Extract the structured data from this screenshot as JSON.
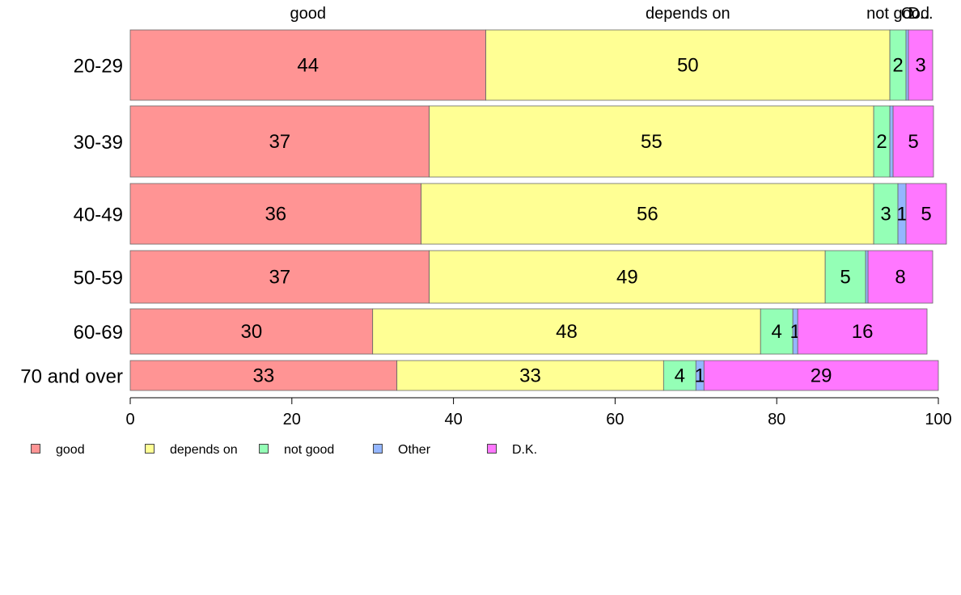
{
  "chart_data": {
    "type": "bar",
    "orientation": "horizontal",
    "stacked": true,
    "categories": [
      "20-29",
      "30-39",
      "40-49",
      "50-59",
      "60-69",
      "70 and over"
    ],
    "series": [
      {
        "name": "good",
        "color": "#FF9494",
        "values": [
          44,
          37,
          36,
          37,
          30,
          33
        ]
      },
      {
        "name": "depends on",
        "color": "#FFFF94",
        "values": [
          50,
          55,
          56,
          49,
          48,
          33
        ]
      },
      {
        "name": "not good",
        "color": "#94FFB6",
        "values": [
          2,
          2,
          3,
          5,
          4,
          4
        ]
      },
      {
        "name": "Other",
        "color": "#94B6FF",
        "values": [
          0.3,
          0.4,
          1,
          0.3,
          0.6,
          1
        ]
      },
      {
        "name": "D.K.",
        "color": "#FF77FF",
        "values": [
          3,
          5,
          5,
          8,
          16,
          29
        ]
      }
    ],
    "data_labels": [
      [
        "44",
        "50",
        "2",
        "",
        "3"
      ],
      [
        "37",
        "55",
        "2",
        "",
        "5"
      ],
      [
        "36",
        "56",
        "3",
        "1",
        "5"
      ],
      [
        "37",
        "49",
        "5",
        "",
        "8"
      ],
      [
        "30",
        "48",
        "4",
        "1",
        "16"
      ],
      [
        "33",
        "33",
        "4",
        "1",
        "29"
      ]
    ],
    "top_labels": [
      "good",
      "depends on",
      "not good",
      "O",
      "D..."
    ],
    "xlim": [
      0,
      100
    ],
    "xticks": [
      "0",
      "20",
      "40",
      "60",
      "80",
      "100"
    ],
    "grid": false,
    "legend_position": "bottom-left"
  }
}
